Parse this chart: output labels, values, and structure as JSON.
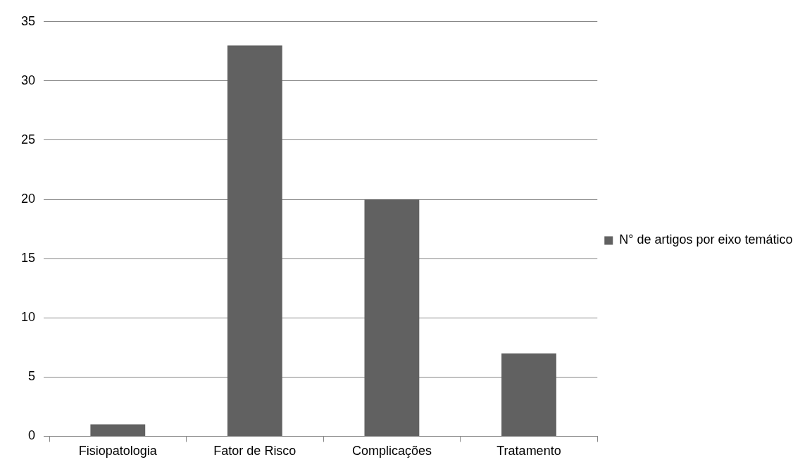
{
  "chart_data": {
    "type": "bar",
    "categories": [
      "Fisiopatologia",
      "Fator de Risco",
      "Complicações",
      "Tratamento"
    ],
    "series": [
      {
        "name": "N° de artigos por eixo temático",
        "color": "#616161",
        "values": [
          1,
          33,
          20,
          7
        ]
      }
    ],
    "ylim": [
      0,
      35
    ],
    "yticks": [
      0,
      5,
      10,
      15,
      20,
      25,
      30,
      35
    ],
    "grid": "y",
    "legend": "right"
  }
}
